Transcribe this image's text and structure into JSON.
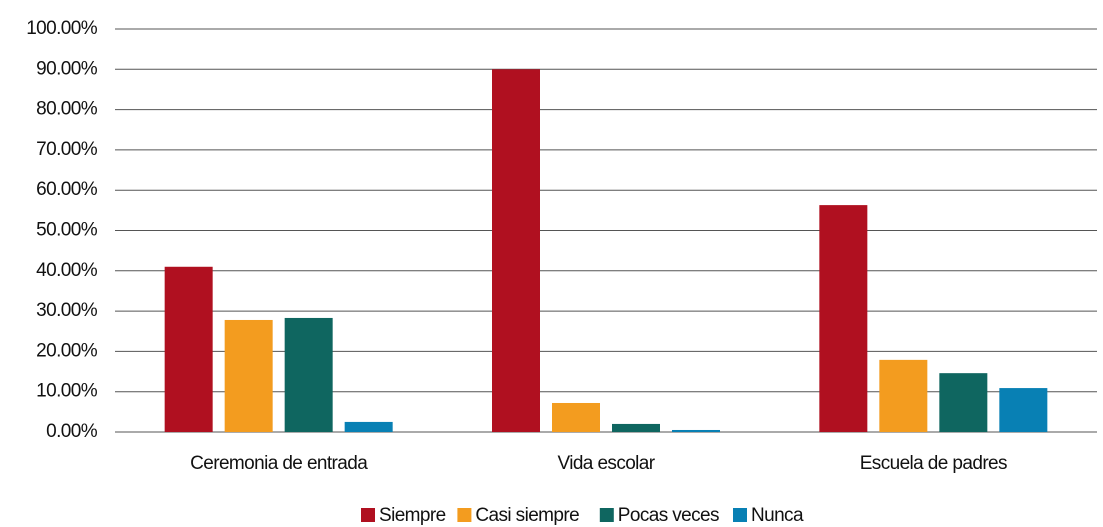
{
  "chart_data": {
    "type": "bar",
    "categories": [
      "Ceremonia de entrada",
      "Vida escolar",
      "Escuela de padres"
    ],
    "series": [
      {
        "name": "Siempre",
        "color": "#b01020",
        "values": [
          41,
          90,
          56.3
        ]
      },
      {
        "name": "Casi siempre",
        "color": "#f39c1f",
        "values": [
          27.8,
          7.2,
          17.9
        ]
      },
      {
        "name": "Pocas veces",
        "color": "#0f6660",
        "values": [
          28.3,
          2,
          14.6
        ]
      },
      {
        "name": "Nunca",
        "color": "#0880b4",
        "values": [
          2.5,
          0.5,
          10.9
        ]
      }
    ],
    "ylim": [
      0,
      100
    ],
    "yticks": [
      {
        "value": 0,
        "label": "0.00%"
      },
      {
        "value": 10,
        "label": "10.00%"
      },
      {
        "value": 20,
        "label": "20.00%"
      },
      {
        "value": 30,
        "label": "30.00%"
      },
      {
        "value": 40,
        "label": "40.00%"
      },
      {
        "value": 50,
        "label": "50.00%"
      },
      {
        "value": 60,
        "label": "60.00%"
      },
      {
        "value": 70,
        "label": "70.00%"
      },
      {
        "value": 80,
        "label": "80.00%"
      },
      {
        "value": 90,
        "label": "90.00%"
      },
      {
        "value": 100,
        "label": "100.00%"
      }
    ],
    "grid": true,
    "legend": "bottom"
  }
}
